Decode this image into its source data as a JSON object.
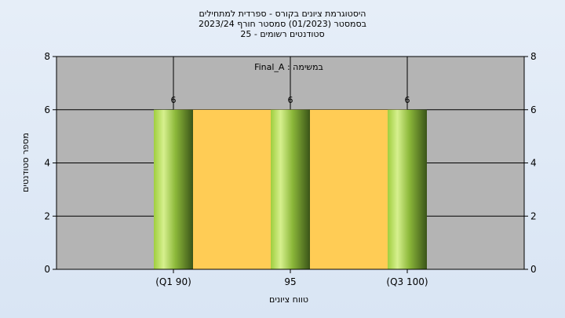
{
  "chart": {
    "title_lines": [
      "היסטוגרמת ציונים בקורס - ספרדית למתחילים",
      "בסמסטר  (01/2023)  סמסטר חורף 2023/24",
      "סטודנטים רשומים - 25"
    ],
    "legend_label": "Final_A : במשימה"
  },
  "chart_data": {
    "type": "bar",
    "title": "היסטוגרמת ציונים בקורס - ספרדית למתחילים",
    "xlabel": "טווח ציונים",
    "ylabel": "מספר סטודנטים",
    "categories": [
      "(Q1 90)",
      "95",
      "(Q3 100)"
    ],
    "values": [
      6,
      6,
      6
    ],
    "value_labels": [
      "6",
      "6",
      "6"
    ],
    "ylim": [
      0,
      8
    ],
    "yticks": [
      0,
      2,
      4,
      6,
      8
    ],
    "y_tick_labels": [
      "0",
      "2",
      "4",
      "6",
      "8"
    ],
    "iqr_band": {
      "from": "(Q1 90)",
      "to": "(Q3 100)",
      "value": 6,
      "color": "#ffcc55"
    },
    "grid": true,
    "colors": {
      "plot_bg": "#b4b4b4",
      "bar_light": "#c8e87a",
      "bar_dark": "#3e5a1e"
    }
  }
}
